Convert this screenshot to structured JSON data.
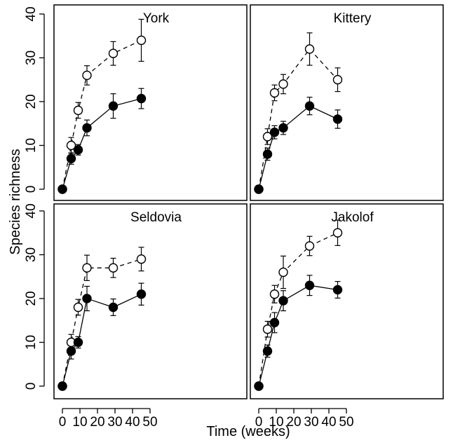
{
  "chart_data": {
    "type": "line",
    "xlabel": "Time (weeks)",
    "ylabel": "Species richness",
    "xlim": [
      0,
      50
    ],
    "ylim": [
      0,
      40
    ],
    "x_ticks": [
      0,
      10,
      20,
      30,
      40,
      50
    ],
    "y_ticks": [
      0,
      10,
      20,
      30,
      40
    ],
    "grid": false,
    "legend": "none",
    "panels": [
      {
        "title": "York",
        "x": [
          0,
          5,
          9,
          14,
          29,
          45
        ],
        "series": [
          {
            "marker": "open-circle",
            "line": "dashed",
            "values": [
              0,
              10,
              18,
              26,
              31,
              34
            ],
            "errors": [
              0,
              1.8,
              1.8,
              2.2,
              2.7,
              4.8
            ]
          },
          {
            "marker": "filled-circle",
            "line": "solid",
            "values": [
              0,
              7,
              9,
              14,
              19,
              20.7
            ],
            "errors": [
              0,
              1.3,
              1.2,
              1.8,
              2.8,
              2.3
            ]
          }
        ]
      },
      {
        "title": "Kittery",
        "x": [
          0,
          5,
          9,
          14,
          29,
          45
        ],
        "series": [
          {
            "marker": "open-circle",
            "line": "dashed",
            "values": [
              0,
              12,
              22,
              24,
              32,
              25
            ],
            "errors": [
              0,
              1.8,
              1.8,
              2.2,
              3.7,
              2.7
            ]
          },
          {
            "marker": "filled-circle",
            "line": "solid",
            "values": [
              0,
              8,
              13,
              14,
              19,
              16
            ],
            "errors": [
              0,
              1.4,
              1.5,
              1.5,
              2.0,
              2.1
            ]
          }
        ]
      },
      {
        "title": "Seldovia",
        "x": [
          0,
          5,
          9,
          14,
          29,
          45
        ],
        "series": [
          {
            "marker": "open-circle",
            "line": "dashed",
            "values": [
              0,
              10,
              18,
              27,
              27,
              29
            ],
            "errors": [
              0,
              1.8,
              1.8,
              2.9,
              2.2,
              2.7
            ]
          },
          {
            "marker": "filled-circle",
            "line": "solid",
            "values": [
              0,
              8,
              10,
              20,
              18,
              21
            ],
            "errors": [
              0,
              1.8,
              1.3,
              2.8,
              1.9,
              2.5
            ]
          }
        ]
      },
      {
        "title": "Jakolof",
        "x": [
          0,
          5,
          9,
          14,
          29,
          45
        ],
        "series": [
          {
            "marker": "open-circle",
            "line": "dashed",
            "values": [
              0,
              13,
              21,
              26,
              32,
              35
            ],
            "errors": [
              0,
              1.8,
              2.0,
              3.7,
              2.2,
              2.9
            ]
          },
          {
            "marker": "filled-circle",
            "line": "solid",
            "values": [
              0,
              8,
              14.5,
              19.5,
              23,
              22
            ],
            "errors": [
              0,
              1.4,
              2.3,
              2.3,
              2.3,
              1.9
            ]
          }
        ]
      }
    ]
  }
}
